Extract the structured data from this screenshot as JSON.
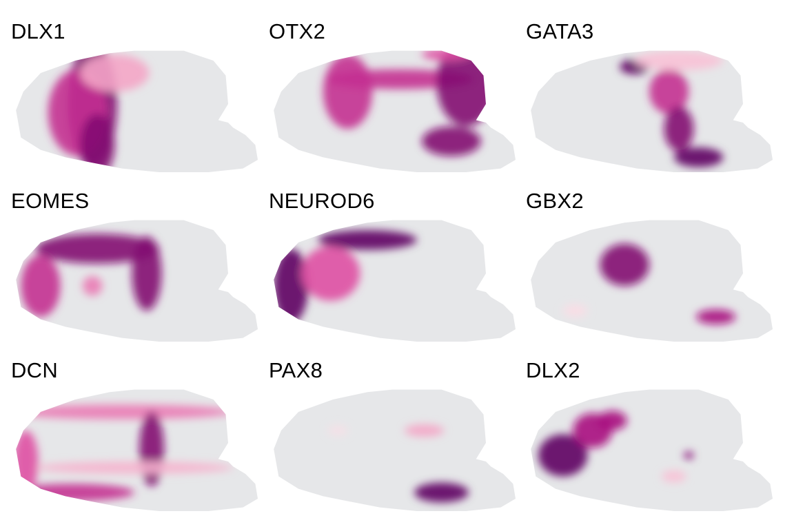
{
  "figure": {
    "background": "#ffffff",
    "tissue_color": "#e6e7e9",
    "colormap": [
      "#e6e7e9",
      "#fbdde6",
      "#f4a6c6",
      "#df4fa3",
      "#a8107f",
      "#5e0062"
    ],
    "panels": [
      {
        "gene": "DLX1"
      },
      {
        "gene": "OTX2"
      },
      {
        "gene": "GATA3"
      },
      {
        "gene": "EOMES"
      },
      {
        "gene": "NEUROD6"
      },
      {
        "gene": "GBX2"
      },
      {
        "gene": "DCN"
      },
      {
        "gene": "PAX8"
      },
      {
        "gene": "DLX2"
      }
    ]
  }
}
